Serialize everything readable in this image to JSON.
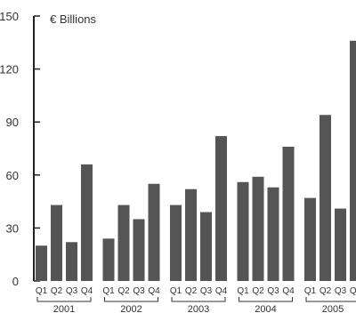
{
  "chart_data": {
    "type": "bar",
    "y_title": "€ Billions",
    "ylim": [
      0,
      150
    ],
    "yticks": [
      "0",
      "30",
      "60",
      "90",
      "120",
      "150"
    ],
    "quarter_labels": [
      "Q1",
      "Q2",
      "Q3",
      "Q4"
    ],
    "years": [
      {
        "year": "2001",
        "values": [
          20,
          43,
          22,
          66
        ]
      },
      {
        "year": "2002",
        "values": [
          24,
          43,
          35,
          55
        ]
      },
      {
        "year": "2003",
        "values": [
          43,
          52,
          39,
          82
        ]
      },
      {
        "year": "2004",
        "values": [
          56,
          59,
          53,
          76
        ]
      },
      {
        "year": "2005",
        "values": [
          47,
          94,
          41,
          136
        ]
      }
    ],
    "bar_color": "#555555",
    "grid": false
  }
}
